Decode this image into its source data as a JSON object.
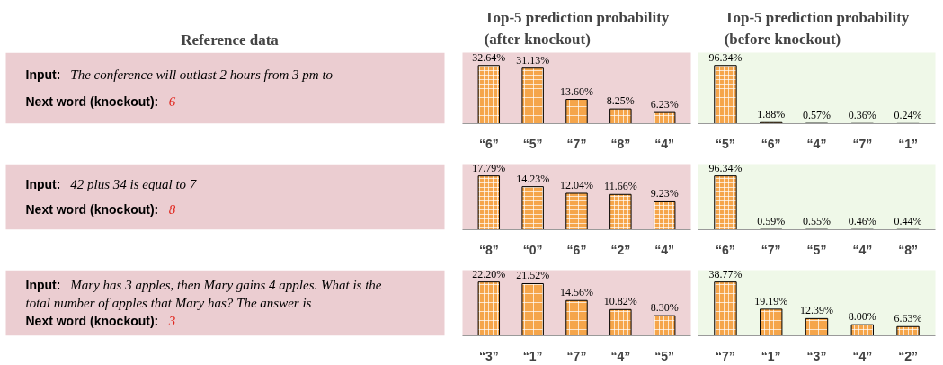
{
  "chart_data": [
    {
      "type": "other",
      "title": "Reference data",
      "annotations": [
        "Input: The conference will outlast 2 hours from 3 pm to",
        "Next word (knockout): 6"
      ]
    },
    {
      "type": "bar",
      "title": "Top-5 prediction probability (after knockout)",
      "categories": [
        "“6”",
        "“5”",
        "“7”",
        "“8”",
        "“4”"
      ],
      "values": [
        32.64,
        31.13,
        13.6,
        8.25,
        6.23
      ],
      "value_labels": [
        "32.64%",
        "31.13%",
        "13.60%",
        "8.25%",
        "6.23%"
      ],
      "color": "#f5a54a"
    },
    {
      "type": "bar",
      "title": "Top-5 prediction probability (before knockout)",
      "categories": [
        "“5”",
        "“6”",
        "“4”",
        "“7”",
        "“1”"
      ],
      "values": [
        96.34,
        1.88,
        0.57,
        0.36,
        0.24
      ],
      "value_labels": [
        "96.34%",
        "1.88%",
        "0.57%",
        "0.36%",
        "0.24%"
      ],
      "color": "#f5a54a"
    },
    {
      "type": "other",
      "annotations": [
        "Input: 42 plus 34 is equal to 7",
        "Next word (knockout): 8"
      ]
    },
    {
      "type": "bar",
      "categories": [
        "“8”",
        "“0”",
        "“6”",
        "“2”",
        "“4”"
      ],
      "values": [
        17.79,
        14.23,
        12.04,
        11.66,
        9.23
      ],
      "value_labels": [
        "17.79%",
        "14.23%",
        "12.04%",
        "11.66%",
        "9.23%"
      ],
      "color": "#f5a54a"
    },
    {
      "type": "bar",
      "categories": [
        "“6”",
        "“7”",
        "“5”",
        "“4”",
        "“8”"
      ],
      "values": [
        96.34,
        0.59,
        0.55,
        0.46,
        0.44
      ],
      "value_labels": [
        "96.34%",
        "0.59%",
        "0.55%",
        "0.46%",
        "0.44%"
      ],
      "color": "#f5a54a"
    },
    {
      "type": "other",
      "annotations": [
        "Input: Mary has 3 apples, then Mary gains 4 apples. What is the total number of apples that Mary has? The answer is",
        "Next word (knockout): 3"
      ]
    },
    {
      "type": "bar",
      "categories": [
        "“3”",
        "“1”",
        "“7”",
        "“4”",
        "“5”"
      ],
      "values": [
        22.2,
        21.52,
        14.56,
        10.82,
        8.3
      ],
      "value_labels": [
        "22.20%",
        "21.52%",
        "14.56%",
        "10.82%",
        "8.30%"
      ],
      "color": "#f5a54a"
    },
    {
      "type": "bar",
      "categories": [
        "“7”",
        "“1”",
        "“3”",
        "“4”",
        "“2”"
      ],
      "values": [
        38.77,
        19.19,
        12.39,
        8.0,
        6.63
      ],
      "value_labels": [
        "38.77%",
        "19.19%",
        "12.39%",
        "8.00%",
        "6.63%"
      ],
      "color": "#f5a54a"
    }
  ]
}
